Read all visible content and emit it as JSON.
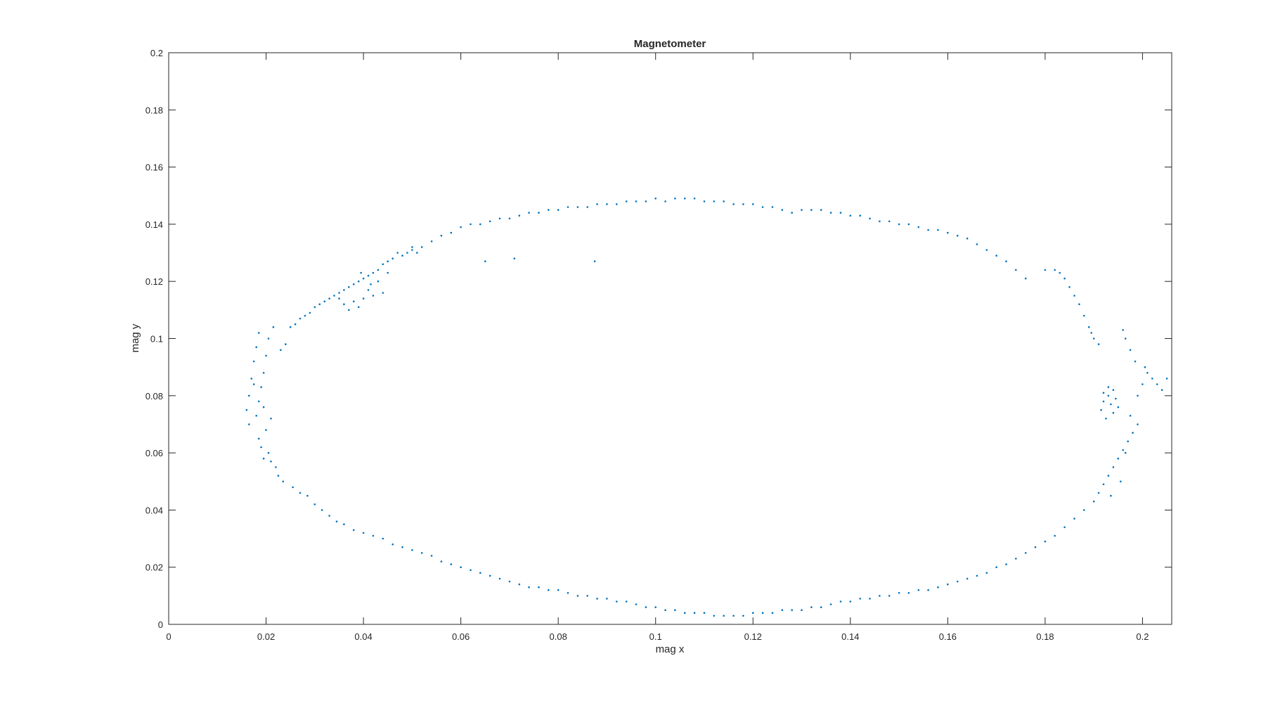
{
  "chart_data": {
    "type": "scatter",
    "title": "Magnetometer",
    "xlabel": "mag x",
    "ylabel": "mag y",
    "xlim": [
      0,
      0.206
    ],
    "ylim": [
      0,
      0.2
    ],
    "xticks": [
      0,
      0.02,
      0.04,
      0.06,
      0.08,
      0.1,
      0.12,
      0.14,
      0.16,
      0.18,
      0.2
    ],
    "xtick_labels": [
      "0",
      "0.02",
      "0.04",
      "0.06",
      "0.08",
      "0.1",
      "0.12",
      "0.14",
      "0.16",
      "0.18",
      "0.2"
    ],
    "yticks": [
      0,
      0.02,
      0.04,
      0.06,
      0.08,
      0.1,
      0.12,
      0.14,
      0.16,
      0.18,
      0.2
    ],
    "ytick_labels": [
      "0",
      "0.02",
      "0.04",
      "0.06",
      "0.08",
      "0.1",
      "0.12",
      "0.14",
      "0.16",
      "0.18",
      "0.2"
    ],
    "grid": false,
    "legend": "none",
    "marker_color": "#0072BD",
    "series": [
      {
        "points": [
          [
            0.0165,
            0.07
          ],
          [
            0.016,
            0.075
          ],
          [
            0.0165,
            0.08
          ],
          [
            0.017,
            0.086
          ],
          [
            0.0175,
            0.092
          ],
          [
            0.018,
            0.097
          ],
          [
            0.0185,
            0.102
          ],
          [
            0.0185,
            0.065
          ],
          [
            0.019,
            0.062
          ],
          [
            0.0195,
            0.058
          ],
          [
            0.0185,
            0.078
          ],
          [
            0.019,
            0.083
          ],
          [
            0.0195,
            0.088
          ],
          [
            0.02,
            0.094
          ],
          [
            0.0205,
            0.1
          ],
          [
            0.0215,
            0.104
          ],
          [
            0.02,
            0.068
          ],
          [
            0.021,
            0.072
          ],
          [
            0.018,
            0.073
          ],
          [
            0.0175,
            0.084
          ],
          [
            0.0195,
            0.076
          ],
          [
            0.0205,
            0.06
          ],
          [
            0.021,
            0.057
          ],
          [
            0.022,
            0.055
          ],
          [
            0.0225,
            0.052
          ],
          [
            0.0235,
            0.05
          ],
          [
            0.023,
            0.096
          ],
          [
            0.024,
            0.098
          ],
          [
            0.0255,
            0.048
          ],
          [
            0.027,
            0.046
          ],
          [
            0.0285,
            0.045
          ],
          [
            0.03,
            0.042
          ],
          [
            0.0315,
            0.04
          ],
          [
            0.033,
            0.038
          ],
          [
            0.0345,
            0.036
          ],
          [
            0.036,
            0.035
          ],
          [
            0.038,
            0.033
          ],
          [
            0.04,
            0.032
          ],
          [
            0.042,
            0.031
          ],
          [
            0.044,
            0.03
          ],
          [
            0.046,
            0.028
          ],
          [
            0.048,
            0.027
          ],
          [
            0.05,
            0.026
          ],
          [
            0.052,
            0.025
          ],
          [
            0.054,
            0.024
          ],
          [
            0.056,
            0.022
          ],
          [
            0.058,
            0.021
          ],
          [
            0.06,
            0.02
          ],
          [
            0.062,
            0.019
          ],
          [
            0.064,
            0.018
          ],
          [
            0.066,
            0.017
          ],
          [
            0.068,
            0.016
          ],
          [
            0.07,
            0.015
          ],
          [
            0.072,
            0.014
          ],
          [
            0.074,
            0.013
          ],
          [
            0.076,
            0.013
          ],
          [
            0.078,
            0.012
          ],
          [
            0.08,
            0.012
          ],
          [
            0.082,
            0.011
          ],
          [
            0.084,
            0.01
          ],
          [
            0.086,
            0.01
          ],
          [
            0.088,
            0.009
          ],
          [
            0.09,
            0.009
          ],
          [
            0.092,
            0.008
          ],
          [
            0.094,
            0.008
          ],
          [
            0.096,
            0.007
          ],
          [
            0.098,
            0.006
          ],
          [
            0.1,
            0.006
          ],
          [
            0.102,
            0.005
          ],
          [
            0.104,
            0.005
          ],
          [
            0.106,
            0.004
          ],
          [
            0.108,
            0.004
          ],
          [
            0.11,
            0.004
          ],
          [
            0.112,
            0.003
          ],
          [
            0.114,
            0.003
          ],
          [
            0.116,
            0.003
          ],
          [
            0.118,
            0.003
          ],
          [
            0.12,
            0.004
          ],
          [
            0.122,
            0.004
          ],
          [
            0.124,
            0.004
          ],
          [
            0.126,
            0.005
          ],
          [
            0.128,
            0.005
          ],
          [
            0.13,
            0.005
          ],
          [
            0.132,
            0.006
          ],
          [
            0.134,
            0.006
          ],
          [
            0.136,
            0.007
          ],
          [
            0.138,
            0.008
          ],
          [
            0.14,
            0.008
          ],
          [
            0.142,
            0.009
          ],
          [
            0.144,
            0.009
          ],
          [
            0.146,
            0.01
          ],
          [
            0.148,
            0.01
          ],
          [
            0.15,
            0.011
          ],
          [
            0.152,
            0.011
          ],
          [
            0.154,
            0.012
          ],
          [
            0.156,
            0.012
          ],
          [
            0.158,
            0.013
          ],
          [
            0.16,
            0.014
          ],
          [
            0.162,
            0.015
          ],
          [
            0.164,
            0.016
          ],
          [
            0.166,
            0.017
          ],
          [
            0.168,
            0.018
          ],
          [
            0.17,
            0.02
          ],
          [
            0.172,
            0.021
          ],
          [
            0.174,
            0.023
          ],
          [
            0.176,
            0.025
          ],
          [
            0.178,
            0.027
          ],
          [
            0.18,
            0.029
          ],
          [
            0.182,
            0.031
          ],
          [
            0.184,
            0.034
          ],
          [
            0.186,
            0.037
          ],
          [
            0.188,
            0.04
          ],
          [
            0.19,
            0.043
          ],
          [
            0.191,
            0.046
          ],
          [
            0.192,
            0.049
          ],
          [
            0.193,
            0.052
          ],
          [
            0.194,
            0.055
          ],
          [
            0.195,
            0.058
          ],
          [
            0.196,
            0.061
          ],
          [
            0.197,
            0.064
          ],
          [
            0.198,
            0.067
          ],
          [
            0.199,
            0.07
          ],
          [
            0.1975,
            0.073
          ],
          [
            0.1965,
            0.06
          ],
          [
            0.1955,
            0.05
          ],
          [
            0.1935,
            0.045
          ],
          [
            0.1915,
            0.075
          ],
          [
            0.192,
            0.078
          ],
          [
            0.193,
            0.08
          ],
          [
            0.194,
            0.082
          ],
          [
            0.1935,
            0.077
          ],
          [
            0.1925,
            0.072
          ],
          [
            0.1945,
            0.079
          ],
          [
            0.195,
            0.076
          ],
          [
            0.193,
            0.083
          ],
          [
            0.192,
            0.081
          ],
          [
            0.194,
            0.074
          ],
          [
            0.199,
            0.08
          ],
          [
            0.2,
            0.084
          ],
          [
            0.201,
            0.088
          ],
          [
            0.202,
            0.086
          ],
          [
            0.203,
            0.084
          ],
          [
            0.204,
            0.082
          ],
          [
            0.205,
            0.086
          ],
          [
            0.1985,
            0.092
          ],
          [
            0.1975,
            0.096
          ],
          [
            0.1965,
            0.1
          ],
          [
            0.196,
            0.103
          ],
          [
            0.2005,
            0.09
          ],
          [
            0.19,
            0.1
          ],
          [
            0.189,
            0.104
          ],
          [
            0.188,
            0.108
          ],
          [
            0.187,
            0.112
          ],
          [
            0.186,
            0.115
          ],
          [
            0.185,
            0.118
          ],
          [
            0.184,
            0.121
          ],
          [
            0.183,
            0.123
          ],
          [
            0.182,
            0.124
          ],
          [
            0.18,
            0.124
          ],
          [
            0.191,
            0.098
          ],
          [
            0.1895,
            0.102
          ],
          [
            0.176,
            0.121
          ],
          [
            0.174,
            0.124
          ],
          [
            0.172,
            0.127
          ],
          [
            0.17,
            0.129
          ],
          [
            0.168,
            0.131
          ],
          [
            0.166,
            0.133
          ],
          [
            0.164,
            0.135
          ],
          [
            0.162,
            0.136
          ],
          [
            0.16,
            0.137
          ],
          [
            0.158,
            0.138
          ],
          [
            0.156,
            0.138
          ],
          [
            0.154,
            0.139
          ],
          [
            0.152,
            0.14
          ],
          [
            0.15,
            0.14
          ],
          [
            0.148,
            0.141
          ],
          [
            0.146,
            0.141
          ],
          [
            0.144,
            0.142
          ],
          [
            0.142,
            0.143
          ],
          [
            0.14,
            0.143
          ],
          [
            0.138,
            0.144
          ],
          [
            0.136,
            0.144
          ],
          [
            0.134,
            0.145
          ],
          [
            0.132,
            0.145
          ],
          [
            0.13,
            0.145
          ],
          [
            0.128,
            0.144
          ],
          [
            0.126,
            0.145
          ],
          [
            0.124,
            0.146
          ],
          [
            0.122,
            0.146
          ],
          [
            0.12,
            0.147
          ],
          [
            0.118,
            0.147
          ],
          [
            0.116,
            0.147
          ],
          [
            0.114,
            0.148
          ],
          [
            0.112,
            0.148
          ],
          [
            0.11,
            0.148
          ],
          [
            0.108,
            0.149
          ],
          [
            0.106,
            0.149
          ],
          [
            0.104,
            0.149
          ],
          [
            0.102,
            0.148
          ],
          [
            0.1,
            0.149
          ],
          [
            0.098,
            0.148
          ],
          [
            0.096,
            0.148
          ],
          [
            0.094,
            0.148
          ],
          [
            0.092,
            0.147
          ],
          [
            0.09,
            0.147
          ],
          [
            0.088,
            0.147
          ],
          [
            0.086,
            0.146
          ],
          [
            0.084,
            0.146
          ],
          [
            0.082,
            0.146
          ],
          [
            0.08,
            0.145
          ],
          [
            0.078,
            0.145
          ],
          [
            0.076,
            0.144
          ],
          [
            0.074,
            0.144
          ],
          [
            0.072,
            0.143
          ],
          [
            0.07,
            0.142
          ],
          [
            0.068,
            0.142
          ],
          [
            0.066,
            0.141
          ],
          [
            0.064,
            0.14
          ],
          [
            0.062,
            0.14
          ],
          [
            0.06,
            0.139
          ],
          [
            0.058,
            0.137
          ],
          [
            0.056,
            0.136
          ],
          [
            0.054,
            0.134
          ],
          [
            0.052,
            0.132
          ],
          [
            0.05,
            0.131
          ],
          [
            0.049,
            0.13
          ],
          [
            0.048,
            0.129
          ],
          [
            0.047,
            0.13
          ],
          [
            0.05,
            0.132
          ],
          [
            0.051,
            0.13
          ],
          [
            0.046,
            0.128
          ],
          [
            0.045,
            0.127
          ],
          [
            0.044,
            0.126
          ],
          [
            0.043,
            0.124
          ],
          [
            0.042,
            0.123
          ],
          [
            0.041,
            0.122
          ],
          [
            0.04,
            0.121
          ],
          [
            0.039,
            0.12
          ],
          [
            0.038,
            0.119
          ],
          [
            0.037,
            0.118
          ],
          [
            0.036,
            0.117
          ],
          [
            0.035,
            0.116
          ],
          [
            0.034,
            0.115
          ],
          [
            0.033,
            0.114
          ],
          [
            0.032,
            0.113
          ],
          [
            0.031,
            0.112
          ],
          [
            0.03,
            0.111
          ],
          [
            0.029,
            0.109
          ],
          [
            0.028,
            0.108
          ],
          [
            0.027,
            0.107
          ],
          [
            0.026,
            0.105
          ],
          [
            0.025,
            0.104
          ],
          [
            0.038,
            0.113
          ],
          [
            0.04,
            0.114
          ],
          [
            0.042,
            0.115
          ],
          [
            0.044,
            0.116
          ],
          [
            0.036,
            0.112
          ],
          [
            0.039,
            0.111
          ],
          [
            0.041,
            0.117
          ],
          [
            0.043,
            0.12
          ],
          [
            0.045,
            0.123
          ],
          [
            0.037,
            0.11
          ],
          [
            0.035,
            0.114
          ],
          [
            0.0395,
            0.123
          ],
          [
            0.0415,
            0.119
          ],
          [
            0.065,
            0.127
          ],
          [
            0.071,
            0.128
          ],
          [
            0.0875,
            0.127
          ]
        ]
      }
    ]
  }
}
